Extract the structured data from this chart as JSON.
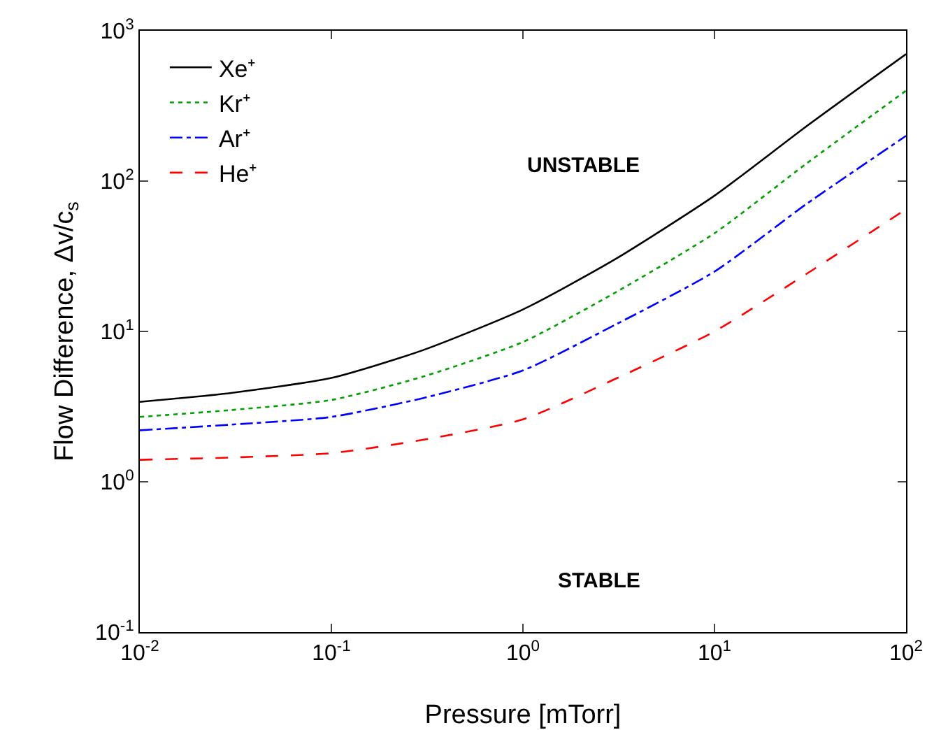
{
  "chart_data": {
    "type": "line",
    "xlabel": "Pressure [mTorr]",
    "ylabel": "Flow Difference, Δv/c$_{s}$",
    "log": "xy",
    "grid": false,
    "legend": "top left",
    "marker": "none",
    "x": [
      0.01,
      0.03,
      0.1,
      0.3,
      1,
      3,
      10,
      30,
      100
    ],
    "series": [
      {
        "name": "Xe⁺",
        "color": "#000000",
        "line_style": "solid",
        "values": [
          3.4,
          3.9,
          4.9,
          7.5,
          14,
          30,
          80,
          230,
          700
        ]
      },
      {
        "name": "Kr⁺",
        "color": "#00a000",
        "line_style": "dotted",
        "values": [
          2.7,
          3.0,
          3.5,
          5.0,
          8.5,
          18,
          45,
          130,
          400
        ]
      },
      {
        "name": "Ar⁺",
        "color": "#0000ff",
        "line_style": "dashdot",
        "values": [
          2.2,
          2.4,
          2.7,
          3.6,
          5.5,
          11,
          25,
          70,
          200
        ]
      },
      {
        "name": "He⁺",
        "color": "#ff0000",
        "line_style": "dashed",
        "values": [
          1.4,
          1.45,
          1.55,
          1.9,
          2.6,
          4.8,
          10,
          24,
          65
        ]
      }
    ],
    "xlim": [
      0.01,
      100
    ],
    "ylim": [
      0.1,
      1000
    ],
    "xticks": [
      {
        "value": 0.01,
        "label": "10$^{-2}$"
      },
      {
        "value": 0.1,
        "label": "10$^{-1}$"
      },
      {
        "value": 1,
        "label": "10$^{0}$"
      },
      {
        "value": 10,
        "label": "10$^{1}$"
      },
      {
        "value": 100,
        "label": "10$^{2}$"
      }
    ],
    "yticks": [
      {
        "value": 0.1,
        "label": "10$^{-1}$"
      },
      {
        "value": 1,
        "label": "10$^{0}$"
      },
      {
        "value": 10,
        "label": "10$^{1}$"
      },
      {
        "value": 100,
        "label": "10$^{2}$"
      },
      {
        "value": 1000,
        "label": "10$^{3}$"
      }
    ],
    "annotations": [
      "UNSTABLE",
      "STABLE"
    ]
  }
}
